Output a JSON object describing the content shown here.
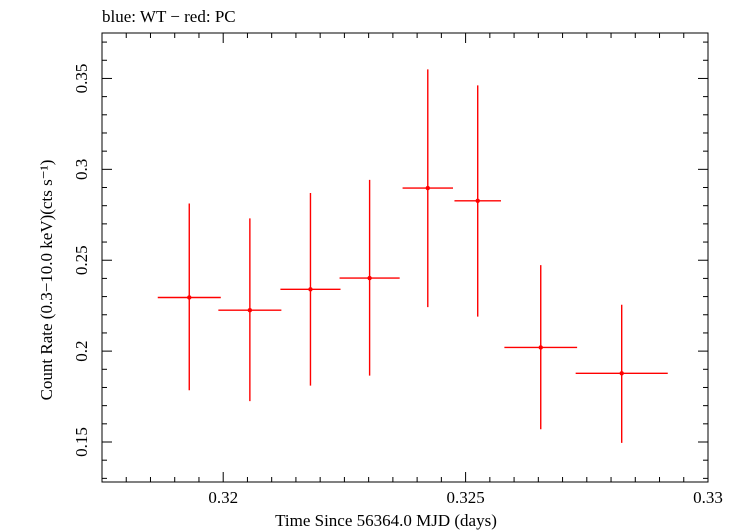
{
  "chart_data": {
    "type": "scatter",
    "title": "blue: WT − red: PC",
    "xlabel": "Time Since 56364.0 MJD (days)",
    "ylabel": "Count Rate (0.3−10.0 keV)(cts s⁻¹)",
    "xlim": [
      0.3175,
      0.33
    ],
    "ylim": [
      0.128,
      0.375
    ],
    "x_ticks": [
      0.32,
      0.325,
      0.33
    ],
    "x_tick_labels": [
      "0.32",
      "0.325",
      "0.33"
    ],
    "y_ticks": [
      0.15,
      0.2,
      0.25,
      0.3,
      0.35
    ],
    "y_tick_labels": [
      "0.15",
      "0.2",
      "0.25",
      "0.3",
      "0.35"
    ],
    "grid": false,
    "series": [
      {
        "name": "PC",
        "color": "#ff0000",
        "points": [
          {
            "x": 0.3193,
            "y": 0.2295,
            "xerr": 0.00065,
            "ylo": 0.1785,
            "yhi": 0.2812
          },
          {
            "x": 0.32055,
            "y": 0.2225,
            "xerr": 0.00065,
            "ylo": 0.1725,
            "yhi": 0.273
          },
          {
            "x": 0.3218,
            "y": 0.234,
            "xerr": 0.00062,
            "ylo": 0.181,
            "yhi": 0.287
          },
          {
            "x": 0.32302,
            "y": 0.2402,
            "xerr": 0.00062,
            "ylo": 0.1865,
            "yhi": 0.2942
          },
          {
            "x": 0.32422,
            "y": 0.2897,
            "xerr": 0.00052,
            "ylo": 0.2242,
            "yhi": 0.355
          },
          {
            "x": 0.32525,
            "y": 0.2827,
            "xerr": 0.00048,
            "ylo": 0.219,
            "yhi": 0.3462
          },
          {
            "x": 0.32655,
            "y": 0.202,
            "xerr": 0.00075,
            "ylo": 0.157,
            "yhi": 0.2473
          },
          {
            "x": 0.32822,
            "y": 0.1878,
            "xerr": 0.00095,
            "ylo": 0.1495,
            "yhi": 0.2255
          }
        ]
      }
    ]
  }
}
